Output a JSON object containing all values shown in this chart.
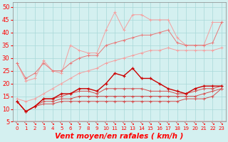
{
  "xlabel": "Vent moyen/en rafales ( km/h )",
  "x": [
    0,
    1,
    2,
    3,
    4,
    5,
    6,
    7,
    8,
    9,
    10,
    11,
    12,
    13,
    14,
    15,
    16,
    17,
    18,
    19,
    20,
    21,
    22,
    23
  ],
  "line1": [
    28,
    21,
    22,
    29,
    25,
    24,
    35,
    33,
    32,
    32,
    41,
    48,
    41,
    47,
    47,
    45,
    45,
    45,
    38,
    35,
    35,
    35,
    44,
    44
  ],
  "line2": [
    28,
    22,
    24,
    28,
    25,
    25,
    28,
    30,
    31,
    31,
    35,
    36,
    37,
    38,
    39,
    39,
    40,
    41,
    36,
    35,
    35,
    35,
    36,
    44
  ],
  "line3": [
    14,
    13,
    14,
    16,
    18,
    20,
    22,
    24,
    25,
    26,
    28,
    29,
    30,
    31,
    32,
    33,
    33,
    34,
    33,
    33,
    33,
    33,
    33,
    34
  ],
  "line4": [
    13,
    9,
    11,
    14,
    14,
    16,
    16,
    18,
    18,
    17,
    20,
    24,
    23,
    26,
    22,
    22,
    20,
    18,
    17,
    16,
    18,
    19,
    19,
    19
  ],
  "line5": [
    13,
    9,
    11,
    14,
    14,
    15,
    16,
    17,
    17,
    16,
    18,
    18,
    18,
    18,
    18,
    17,
    17,
    17,
    16,
    16,
    17,
    18,
    18,
    19
  ],
  "line6": [
    13,
    9,
    11,
    13,
    13,
    14,
    14,
    15,
    15,
    15,
    15,
    15,
    15,
    15,
    15,
    15,
    15,
    15,
    15,
    15,
    15,
    16,
    17,
    18
  ],
  "line7": [
    13,
    9,
    11,
    12,
    12,
    13,
    13,
    13,
    13,
    13,
    13,
    13,
    13,
    13,
    13,
    13,
    13,
    13,
    13,
    14,
    14,
    14,
    15,
    18
  ],
  "color_lightest": "#f4a0a0",
  "color_light": "#e87878",
  "color_medium_light": "#d45050",
  "color_dark": "#cc0000",
  "bg_color": "#d4f0f0",
  "grid_color": "#a8d8d8",
  "ylim": [
    5,
    52
  ],
  "yticks": [
    5,
    10,
    15,
    20,
    25,
    30,
    35,
    40,
    45,
    50
  ]
}
